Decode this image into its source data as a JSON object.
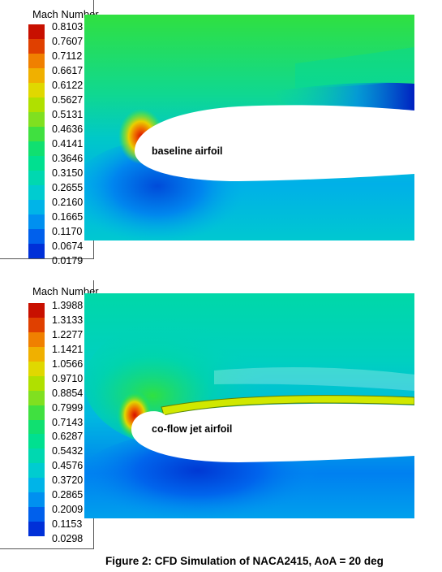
{
  "panels": [
    {
      "legend_title": "Mach Number",
      "colorbar_values": [
        "0.8103",
        "0.7607",
        "0.7112",
        "0.6617",
        "0.6122",
        "0.5627",
        "0.5131",
        "0.4636",
        "0.4141",
        "0.3646",
        "0.3150",
        "0.2655",
        "0.2160",
        "0.1665",
        "0.1170",
        "0.0674",
        "0.0179"
      ],
      "airfoil_label": "baseline airfoil"
    },
    {
      "legend_title": "Mach Number",
      "colorbar_values": [
        "1.3988",
        "1.3133",
        "1.2277",
        "1.1421",
        "1.0566",
        "0.9710",
        "0.8854",
        "0.7999",
        "0.7143",
        "0.6287",
        "0.5432",
        "0.4576",
        "0.3720",
        "0.2865",
        "0.2009",
        "0.1153",
        "0.0298"
      ],
      "airfoil_label": "co-flow jet  airfoil"
    }
  ],
  "caption": "Figure 2: CFD Simulation of NACA2415, AoA = 20 deg",
  "colormap": [
    "#0000b4",
    "#0030d8",
    "#0060ec",
    "#0090f0",
    "#00b4e8",
    "#00ccd0",
    "#00d8b0",
    "#00e090",
    "#10e070",
    "#40e040",
    "#80e020",
    "#b0e000",
    "#e0d800",
    "#f0b000",
    "#f08000",
    "#e04000",
    "#c81000"
  ]
}
